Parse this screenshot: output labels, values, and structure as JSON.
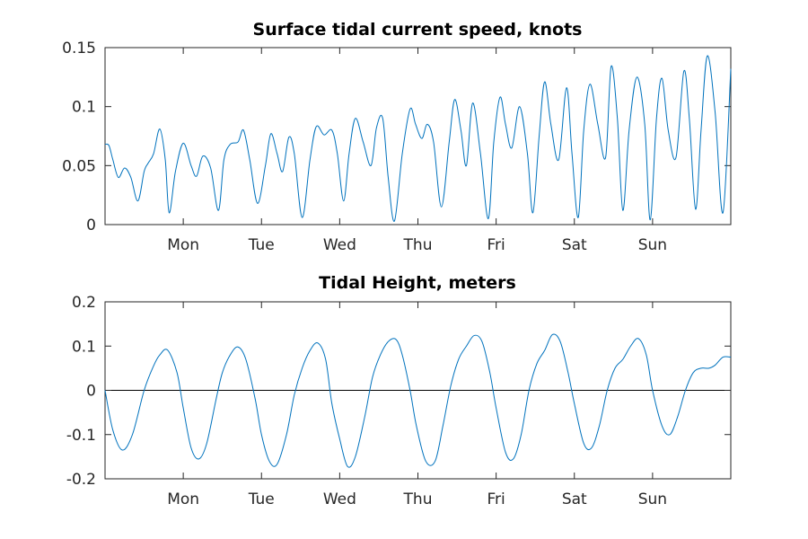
{
  "chart_data": [
    {
      "type": "line",
      "title": "Surface tidal current speed, knots",
      "xlabel": "",
      "ylabel": "",
      "x_unit": "days",
      "xlim": [
        0,
        8
      ],
      "ylim": [
        0,
        0.15
      ],
      "y_ticks": [
        0,
        0.05,
        0.1,
        0.15
      ],
      "y_tick_labels": [
        "0",
        "0.05",
        "0.1",
        "0.15"
      ],
      "x_ticks": [
        1,
        2,
        3,
        4,
        5,
        6,
        7
      ],
      "x_tick_labels": [
        "Mon",
        "Tue",
        "Wed",
        "Thu",
        "Fri",
        "Sat",
        "Sun"
      ],
      "grid": false,
      "legend": "none",
      "line_color": "#0072BD",
      "series": [
        {
          "x": [
            0.0,
            0.05,
            0.1,
            0.17,
            0.25,
            0.33,
            0.42,
            0.5,
            0.55,
            0.62,
            0.7,
            0.77,
            0.82,
            0.9,
            1.0,
            1.1,
            1.17,
            1.25,
            1.35,
            1.45,
            1.52,
            1.6,
            1.7,
            1.77,
            1.85,
            1.95,
            2.05,
            2.12,
            2.2,
            2.27,
            2.35,
            2.42,
            2.52,
            2.62,
            2.7,
            2.8,
            2.9,
            2.97,
            3.05,
            3.12,
            3.2,
            3.3,
            3.4,
            3.47,
            3.55,
            3.62,
            3.7,
            3.8,
            3.9,
            3.97,
            4.05,
            4.12,
            4.2,
            4.3,
            4.4,
            4.47,
            4.55,
            4.62,
            4.7,
            4.8,
            4.9,
            4.97,
            5.05,
            5.12,
            5.2,
            5.3,
            5.4,
            5.47,
            5.55,
            5.62,
            5.7,
            5.8,
            5.9,
            5.97,
            6.05,
            6.12,
            6.2,
            6.3,
            6.4,
            6.47,
            6.55,
            6.62,
            6.7,
            6.8,
            6.9,
            6.97,
            7.05,
            7.12,
            7.2,
            7.3,
            7.4,
            7.47,
            7.55,
            7.62,
            7.7,
            7.8,
            7.9,
            8.0
          ],
          "y": [
            0.068,
            0.067,
            0.055,
            0.04,
            0.048,
            0.04,
            0.02,
            0.045,
            0.052,
            0.06,
            0.081,
            0.055,
            0.01,
            0.045,
            0.069,
            0.05,
            0.041,
            0.058,
            0.048,
            0.012,
            0.055,
            0.068,
            0.07,
            0.08,
            0.055,
            0.018,
            0.05,
            0.077,
            0.06,
            0.045,
            0.074,
            0.06,
            0.006,
            0.055,
            0.083,
            0.076,
            0.08,
            0.06,
            0.02,
            0.06,
            0.09,
            0.07,
            0.05,
            0.082,
            0.09,
            0.04,
            0.003,
            0.06,
            0.098,
            0.085,
            0.073,
            0.085,
            0.07,
            0.015,
            0.07,
            0.106,
            0.08,
            0.05,
            0.103,
            0.06,
            0.005,
            0.07,
            0.108,
            0.085,
            0.065,
            0.1,
            0.06,
            0.01,
            0.075,
            0.121,
            0.085,
            0.055,
            0.116,
            0.06,
            0.006,
            0.08,
            0.119,
            0.085,
            0.057,
            0.134,
            0.09,
            0.012,
            0.08,
            0.125,
            0.085,
            0.004,
            0.09,
            0.124,
            0.08,
            0.057,
            0.13,
            0.09,
            0.013,
            0.08,
            0.143,
            0.095,
            0.01,
            0.132
          ]
        }
      ]
    },
    {
      "type": "line",
      "title": "Tidal Height, meters",
      "xlabel": "",
      "ylabel": "",
      "x_unit": "days",
      "xlim": [
        0,
        8
      ],
      "ylim": [
        -0.2,
        0.2
      ],
      "y_ticks": [
        -0.2,
        -0.1,
        0,
        0.1,
        0.2
      ],
      "y_tick_labels": [
        "-0.2",
        "-0.1",
        "0",
        "0.1",
        "0.2"
      ],
      "x_ticks": [
        1,
        2,
        3,
        4,
        5,
        6,
        7
      ],
      "x_tick_labels": [
        "Mon",
        "Tue",
        "Wed",
        "Thu",
        "Fri",
        "Sat",
        "Sun"
      ],
      "grid": false,
      "legend": "none",
      "zero_line": true,
      "zero_line_color": "#000000",
      "line_color": "#0072BD",
      "series": [
        {
          "x": [
            0.0,
            0.1,
            0.22,
            0.35,
            0.5,
            0.62,
            0.7,
            0.8,
            0.92,
            1.0,
            1.1,
            1.2,
            1.3,
            1.42,
            1.5,
            1.6,
            1.7,
            1.8,
            1.92,
            2.0,
            2.1,
            2.2,
            2.32,
            2.42,
            2.52,
            2.62,
            2.72,
            2.82,
            2.9,
            3.0,
            3.1,
            3.2,
            3.32,
            3.42,
            3.52,
            3.62,
            3.72,
            3.8,
            3.9,
            3.98,
            4.1,
            4.22,
            4.32,
            4.42,
            4.52,
            4.62,
            4.72,
            4.82,
            4.92,
            5.0,
            5.12,
            5.22,
            5.32,
            5.42,
            5.52,
            5.62,
            5.72,
            5.82,
            5.92,
            6.0,
            6.12,
            6.22,
            6.32,
            6.42,
            6.52,
            6.62,
            6.72,
            6.82,
            6.92,
            7.0,
            7.12,
            7.22,
            7.32,
            7.42,
            7.52,
            7.62,
            7.72,
            7.8,
            7.9,
            8.0
          ],
          "y": [
            0.0,
            -0.09,
            -0.135,
            -0.1,
            0.0,
            0.055,
            0.08,
            0.091,
            0.04,
            -0.04,
            -0.13,
            -0.155,
            -0.12,
            -0.02,
            0.04,
            0.08,
            0.098,
            0.07,
            -0.02,
            -0.1,
            -0.16,
            -0.167,
            -0.1,
            -0.01,
            0.05,
            0.09,
            0.107,
            0.07,
            -0.03,
            -0.11,
            -0.172,
            -0.15,
            -0.06,
            0.03,
            0.08,
            0.11,
            0.115,
            0.08,
            0.0,
            -0.08,
            -0.16,
            -0.16,
            -0.08,
            0.01,
            0.07,
            0.1,
            0.124,
            0.11,
            0.04,
            -0.04,
            -0.14,
            -0.155,
            -0.1,
            0.0,
            0.06,
            0.09,
            0.126,
            0.11,
            0.04,
            -0.03,
            -0.12,
            -0.13,
            -0.08,
            0.0,
            0.05,
            0.07,
            0.1,
            0.117,
            0.08,
            0.0,
            -0.08,
            -0.1,
            -0.06,
            0.0,
            0.04,
            0.05,
            0.05,
            0.057,
            0.075,
            0.075
          ]
        }
      ]
    }
  ]
}
